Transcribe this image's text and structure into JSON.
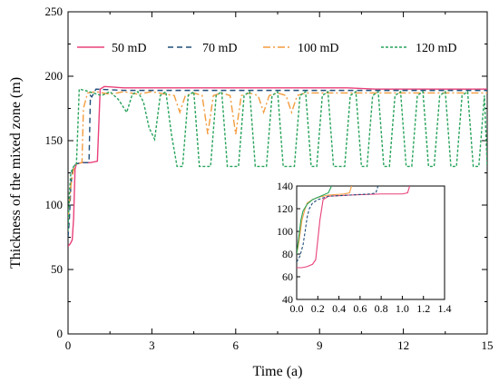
{
  "chart_data": [
    {
      "type": "line",
      "xlabel": "Time (a)",
      "ylabel": "Thickness of the mixed zone (m)",
      "xlim": [
        0,
        15
      ],
      "ylim": [
        0,
        250
      ],
      "xticks": [
        "0",
        "3",
        "6",
        "9",
        "12",
        "15"
      ],
      "yticks": [
        "0",
        "50",
        "100",
        "150",
        "200",
        "250"
      ],
      "legend": "top",
      "series": [
        {
          "name": "50 mD",
          "color": "#e8417a",
          "dash": "solid",
          "x": [
            0,
            0.08,
            0.15,
            0.2,
            0.25,
            0.3,
            0.5,
            0.8,
            1.05,
            1.15,
            1.3,
            2,
            3,
            4,
            5,
            6,
            7,
            8,
            9,
            10,
            11,
            12,
            13,
            14,
            15
          ],
          "y": [
            68,
            70,
            73,
            90,
            128,
            132,
            133,
            133,
            134,
            190,
            192,
            191,
            191,
            191,
            191,
            191,
            191,
            191,
            191,
            191,
            190,
            190,
            190,
            190,
            190
          ]
        },
        {
          "name": "70 mD",
          "color": "#1f4e79",
          "dash": "6,4",
          "x": [
            0,
            0.05,
            0.1,
            0.15,
            0.2,
            0.3,
            0.5,
            0.75,
            0.8,
            0.85,
            1.0,
            2,
            3,
            4,
            5,
            6,
            7,
            8,
            9,
            10,
            11,
            12,
            13,
            14,
            15
          ],
          "y": [
            75,
            90,
            115,
            125,
            130,
            132,
            133,
            133,
            185,
            184,
            190,
            189,
            189,
            189,
            189,
            189,
            189,
            189,
            189,
            189,
            189,
            189,
            189,
            189,
            189
          ]
        },
        {
          "name": "100 mD",
          "color": "#f39c3f",
          "dash": "8,3,2,3",
          "x": [
            0,
            0.1,
            0.2,
            0.3,
            0.5,
            0.55,
            0.7,
            1.0,
            1.5,
            2.0,
            2.5,
            3.0,
            3.5,
            3.8,
            4.0,
            4.2,
            4.5,
            4.8,
            5.0,
            5.2,
            5.5,
            5.8,
            6.0,
            6.2,
            6.5,
            6.8,
            7.0,
            7.2,
            7.5,
            7.8,
            8.0,
            8.2,
            8.5,
            8.8,
            9.0,
            9.5,
            10,
            10.5,
            11,
            11.5,
            12,
            12.5,
            13,
            13.5,
            14,
            14.5,
            15
          ],
          "y": [
            90,
            115,
            128,
            132,
            133,
            175,
            187,
            188,
            186,
            188,
            186,
            188,
            186,
            185,
            172,
            185,
            187,
            185,
            155,
            185,
            187,
            185,
            155,
            185,
            187,
            185,
            172,
            185,
            187,
            185,
            172,
            185,
            187,
            187,
            187,
            187,
            187,
            187,
            187,
            187,
            187,
            187,
            187,
            187,
            187,
            187,
            187
          ]
        },
        {
          "name": "120 mD",
          "color": "#27a35a",
          "dash": "3,2",
          "x": [
            0,
            0.05,
            0.1,
            0.2,
            0.3,
            0.35,
            0.4,
            0.6,
            0.9,
            1.2,
            1.5,
            1.8,
            2.1,
            2.3,
            2.5,
            2.7,
            2.9,
            3.1,
            3.3,
            3.5,
            3.7,
            3.9,
            4.1,
            4.3,
            4.5,
            4.7,
            4.9,
            5.1,
            5.3,
            5.5,
            5.7,
            5.9,
            6.1,
            6.3,
            6.5,
            6.7,
            6.9,
            7.1,
            7.3,
            7.5,
            7.7,
            7.9,
            8.1,
            8.3,
            8.5,
            8.7,
            8.9,
            9.1,
            9.3,
            9.5,
            9.7,
            9.9,
            10.1,
            10.3,
            10.5,
            10.7,
            10.9,
            11.1,
            11.3,
            11.5,
            11.7,
            11.9,
            12.1,
            12.3,
            12.5,
            12.7,
            12.9,
            13.1,
            13.3,
            13.5,
            13.7,
            13.9,
            14.1,
            14.3,
            14.5,
            14.7,
            14.9,
            15
          ],
          "y": [
            80,
            110,
            125,
            130,
            132,
            160,
            190,
            189,
            187,
            185,
            188,
            182,
            172,
            186,
            188,
            180,
            160,
            151,
            185,
            188,
            155,
            130,
            130,
            185,
            188,
            130,
            130,
            130,
            185,
            188,
            130,
            130,
            130,
            185,
            188,
            130,
            130,
            130,
            185,
            188,
            130,
            130,
            130,
            185,
            188,
            130,
            130,
            185,
            188,
            130,
            130,
            130,
            185,
            188,
            130,
            130,
            185,
            188,
            130,
            130,
            185,
            188,
            130,
            130,
            185,
            188,
            130,
            130,
            185,
            188,
            130,
            130,
            185,
            188,
            130,
            130,
            185,
            130
          ]
        }
      ]
    },
    {
      "type": "line",
      "role": "inset",
      "xlim": [
        0,
        1.4
      ],
      "ylim": [
        40,
        140
      ],
      "xticks": [
        "0.0",
        "0.2",
        "0.4",
        "0.6",
        "0.8",
        "1.0",
        "1.2",
        "1.4"
      ],
      "yticks": [
        "40",
        "60",
        "80",
        "100",
        "120",
        "140"
      ],
      "series": [
        {
          "name": "50 mD",
          "color": "#e8417a",
          "dash": "solid",
          "x": [
            0,
            0.05,
            0.1,
            0.15,
            0.18,
            0.22,
            0.25,
            0.3,
            0.5,
            0.8,
            1.0,
            1.05,
            1.07
          ],
          "y": [
            68,
            68,
            69,
            71,
            75,
            110,
            128,
            131,
            132,
            133,
            133,
            134,
            140
          ]
        },
        {
          "name": "70 mD",
          "color": "#1f4e79",
          "dash": "3,2",
          "x": [
            0,
            0.03,
            0.06,
            0.08,
            0.1,
            0.12,
            0.15,
            0.2,
            0.3,
            0.5,
            0.7,
            0.75,
            0.77
          ],
          "y": [
            73,
            78,
            88,
            100,
            113,
            120,
            125,
            128,
            131,
            132,
            133,
            134,
            140
          ]
        },
        {
          "name": "100 mD",
          "color": "#f39c3f",
          "dash": "solid",
          "x": [
            0,
            0.02,
            0.05,
            0.08,
            0.1,
            0.15,
            0.2,
            0.3,
            0.45,
            0.5,
            0.52
          ],
          "y": [
            80,
            90,
            110,
            120,
            125,
            128,
            130,
            132,
            133,
            134,
            140
          ]
        },
        {
          "name": "120 mD",
          "color": "#27a35a",
          "dash": "solid",
          "x": [
            0,
            0.02,
            0.04,
            0.06,
            0.1,
            0.15,
            0.2,
            0.25,
            0.3,
            0.33
          ],
          "y": [
            80,
            95,
            110,
            118,
            124,
            128,
            130,
            132,
            134,
            140
          ]
        }
      ]
    }
  ]
}
